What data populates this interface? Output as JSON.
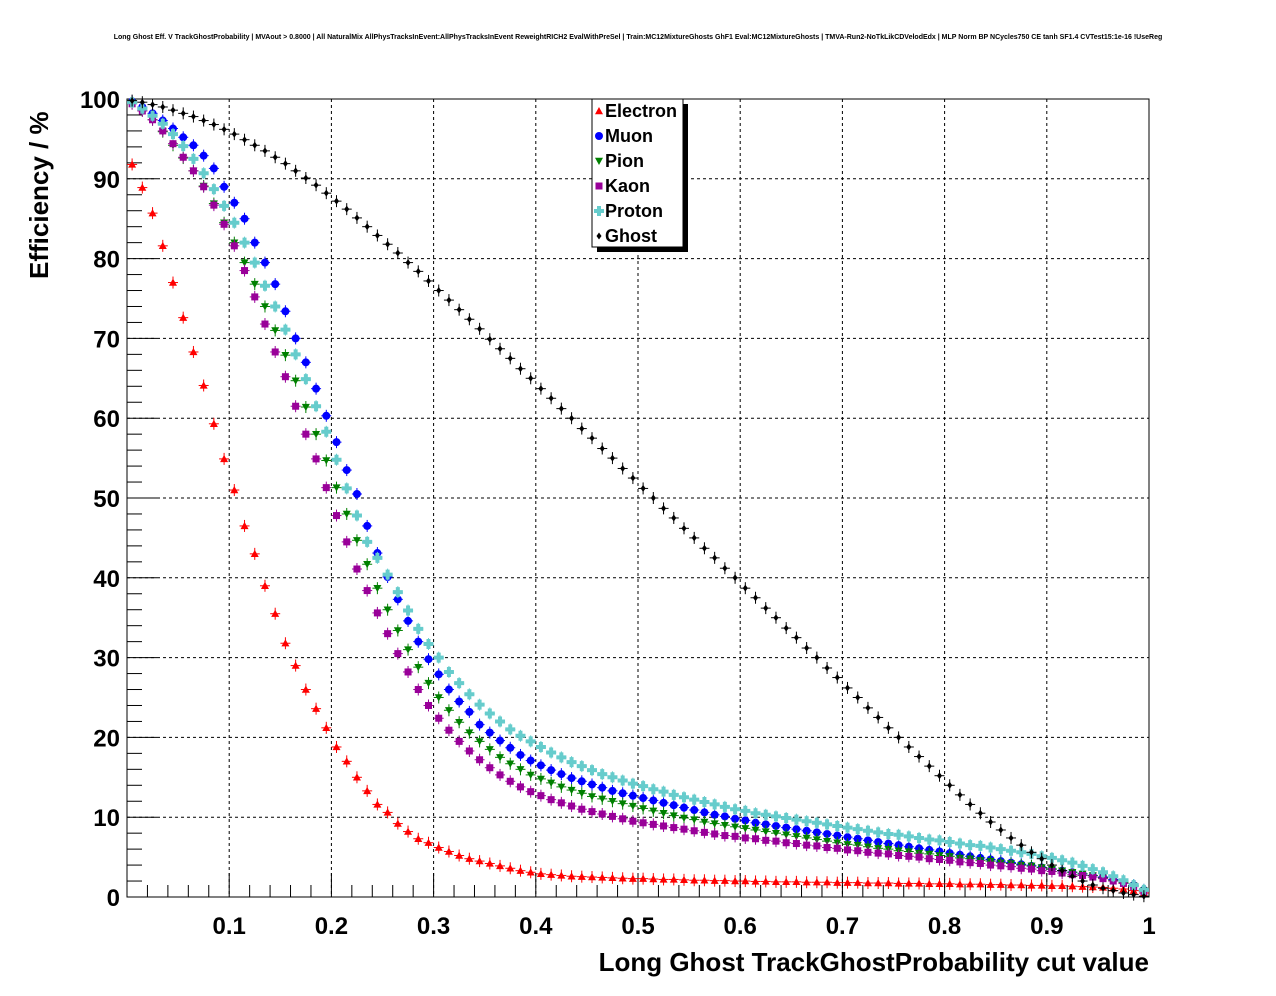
{
  "page": {
    "title": "Long Ghost Eff. V TrackGhostProbability | MVAout > 0.8000 | All NaturalMix AllPhysTracksInEvent:AllPhysTracksInEvent ReweightRICH2 EvalWithPreSel | Train:MC12MixtureGhosts GhF1 Eval:MC12MixtureGhosts | TMVA-Run2-NoTkLikCDVelodEdx | MLP Norm BP NCycles750 CE tanh SF1.4 CVTest15:1e-16 !UseReg"
  },
  "chart_data": {
    "type": "scatter",
    "title": "Long Ghost Eff. V TrackGhostProbability | MVAout > 0.8000 | All NaturalMix AllPhysTracksInEvent:AllPhysTracksInEvent ReweightRICH2 EvalWithPreSel | Train:MC12MixtureGhosts GhF1 Eval:MC12MixtureGhosts | TMVA-Run2-NoTkLikCDVelodEdx | MLP Norm BP NCycles750 CE tanh SF1.4 CVTest15:1e-16 !UseReg",
    "xlabel": "Long Ghost TrackGhostProbability cut value",
    "ylabel": "Efficiency / %",
    "xlim": [
      0,
      1
    ],
    "ylim": [
      0,
      100
    ],
    "xticks": [
      0.1,
      0.2,
      0.3,
      0.4,
      0.5,
      0.6,
      0.7,
      0.8,
      0.9,
      1
    ],
    "xtick_labels": [
      "0.1",
      "0.2",
      "0.3",
      "0.4",
      "0.5",
      "0.6",
      "0.7",
      "0.8",
      "0.9",
      "1"
    ],
    "yticks": [
      0,
      10,
      20,
      30,
      40,
      50,
      60,
      70,
      80,
      90,
      100
    ],
    "ytick_labels": [
      "0",
      "10",
      "20",
      "30",
      "40",
      "50",
      "60",
      "70",
      "80",
      "90",
      "100"
    ],
    "grid": true,
    "legend_position": "top-center",
    "x": [
      0.005,
      0.015,
      0.025,
      0.035,
      0.045,
      0.055,
      0.065,
      0.075,
      0.085,
      0.095,
      0.105,
      0.115,
      0.125,
      0.135,
      0.145,
      0.155,
      0.165,
      0.175,
      0.185,
      0.195,
      0.205,
      0.215,
      0.225,
      0.235,
      0.245,
      0.255,
      0.265,
      0.275,
      0.285,
      0.295,
      0.305,
      0.315,
      0.325,
      0.335,
      0.345,
      0.355,
      0.365,
      0.375,
      0.385,
      0.395,
      0.405,
      0.415,
      0.425,
      0.435,
      0.445,
      0.455,
      0.465,
      0.475,
      0.485,
      0.495,
      0.505,
      0.515,
      0.525,
      0.535,
      0.545,
      0.555,
      0.565,
      0.575,
      0.585,
      0.595,
      0.605,
      0.615,
      0.625,
      0.635,
      0.645,
      0.655,
      0.665,
      0.675,
      0.685,
      0.695,
      0.705,
      0.715,
      0.725,
      0.735,
      0.745,
      0.755,
      0.765,
      0.775,
      0.785,
      0.795,
      0.805,
      0.815,
      0.825,
      0.835,
      0.845,
      0.855,
      0.865,
      0.875,
      0.885,
      0.895,
      0.905,
      0.915,
      0.925,
      0.935,
      0.945,
      0.955,
      0.965,
      0.975,
      0.985,
      0.995
    ],
    "series": [
      {
        "name": "Electron",
        "color": "#ff0000",
        "marker": "triangle-up",
        "values": [
          91.8,
          88.9,
          85.7,
          81.6,
          77.0,
          72.6,
          68.3,
          64.1,
          59.3,
          54.9,
          51.0,
          46.5,
          43.0,
          39.0,
          35.5,
          31.8,
          29.0,
          26.0,
          23.6,
          21.2,
          18.8,
          17.0,
          15.0,
          13.3,
          11.6,
          10.6,
          9.2,
          8.2,
          7.3,
          6.8,
          6.2,
          5.7,
          5.2,
          4.8,
          4.5,
          4.2,
          3.9,
          3.6,
          3.3,
          3.1,
          2.9,
          2.8,
          2.7,
          2.6,
          2.55,
          2.5,
          2.45,
          2.4,
          2.35,
          2.3,
          2.3,
          2.25,
          2.2,
          2.2,
          2.15,
          2.1,
          2.1,
          2.05,
          2.05,
          2.0,
          2.0,
          1.95,
          1.95,
          1.9,
          1.9,
          1.9,
          1.85,
          1.85,
          1.85,
          1.8,
          1.8,
          1.8,
          1.75,
          1.75,
          1.75,
          1.7,
          1.7,
          1.7,
          1.65,
          1.65,
          1.65,
          1.6,
          1.6,
          1.6,
          1.55,
          1.55,
          1.5,
          1.5,
          1.45,
          1.45,
          1.4,
          1.4,
          1.35,
          1.3,
          1.25,
          1.2,
          1.1,
          1.0,
          0.8,
          0.5
        ]
      },
      {
        "name": "Muon",
        "color": "#0000ff",
        "marker": "circle",
        "values": [
          99.7,
          99.0,
          98.2,
          97.3,
          96.3,
          95.2,
          94.2,
          92.9,
          91.3,
          89.0,
          87.0,
          85.0,
          82.0,
          79.5,
          76.8,
          73.4,
          70.0,
          67.0,
          63.7,
          60.3,
          57.0,
          53.5,
          50.5,
          46.5,
          43.1,
          40.1,
          37.3,
          34.6,
          32.0,
          29.8,
          27.9,
          26.0,
          24.5,
          23.2,
          21.6,
          20.6,
          19.6,
          18.7,
          17.8,
          17.1,
          16.5,
          15.9,
          15.4,
          14.9,
          14.5,
          14.1,
          13.7,
          13.3,
          13.0,
          12.7,
          12.4,
          12.1,
          11.8,
          11.5,
          11.2,
          10.9,
          10.6,
          10.3,
          10.1,
          9.8,
          9.6,
          9.3,
          9.1,
          8.9,
          8.7,
          8.5,
          8.3,
          8.1,
          7.9,
          7.7,
          7.5,
          7.3,
          7.1,
          6.9,
          6.7,
          6.5,
          6.3,
          6.1,
          5.9,
          5.7,
          5.5,
          5.3,
          5.1,
          4.9,
          4.7,
          4.5,
          4.3,
          4.1,
          3.9,
          3.7,
          3.5,
          3.3,
          3.1,
          2.9,
          2.7,
          2.5,
          2.2,
          1.9,
          1.5,
          0.9
        ]
      },
      {
        "name": "Pion",
        "color": "#008000",
        "marker": "triangle-down",
        "values": [
          99.5,
          98.6,
          97.4,
          95.9,
          94.2,
          92.6,
          91.0,
          89.1,
          86.9,
          84.5,
          82.0,
          79.5,
          76.8,
          74.0,
          71.0,
          67.9,
          64.7,
          61.4,
          58.0,
          54.7,
          51.3,
          48.0,
          44.7,
          41.7,
          38.7,
          36.0,
          33.4,
          31.0,
          28.8,
          26.8,
          25.0,
          23.4,
          21.9,
          20.6,
          19.5,
          18.5,
          17.5,
          16.7,
          16.0,
          15.3,
          14.8,
          14.3,
          13.8,
          13.4,
          13.0,
          12.6,
          12.3,
          12.0,
          11.7,
          11.4,
          11.1,
          10.8,
          10.5,
          10.2,
          9.9,
          9.7,
          9.4,
          9.2,
          9.0,
          8.8,
          8.6,
          8.4,
          8.2,
          8.0,
          7.8,
          7.6,
          7.4,
          7.2,
          7.0,
          6.8,
          6.6,
          6.5,
          6.3,
          6.1,
          6.0,
          5.8,
          5.7,
          5.5,
          5.4,
          5.2,
          5.1,
          4.9,
          4.8,
          4.6,
          4.5,
          4.3,
          4.2,
          4.0,
          3.9,
          3.7,
          3.5,
          3.3,
          3.1,
          2.9,
          2.7,
          2.4,
          2.1,
          1.8,
          1.4,
          0.8
        ]
      },
      {
        "name": "Kaon",
        "color": "#990099",
        "marker": "square",
        "values": [
          99.4,
          98.5,
          97.4,
          96.0,
          94.4,
          92.7,
          91.0,
          89.0,
          86.7,
          84.3,
          81.6,
          78.5,
          75.2,
          71.8,
          68.3,
          65.2,
          61.5,
          58.0,
          54.9,
          51.3,
          47.8,
          44.5,
          41.1,
          38.4,
          35.6,
          33.0,
          30.5,
          28.2,
          26.0,
          24.0,
          22.4,
          20.9,
          19.5,
          18.3,
          17.2,
          16.2,
          15.3,
          14.5,
          13.8,
          13.2,
          12.7,
          12.2,
          11.8,
          11.4,
          11.0,
          10.7,
          10.4,
          10.1,
          9.8,
          9.5,
          9.3,
          9.1,
          8.9,
          8.7,
          8.5,
          8.3,
          8.1,
          7.9,
          7.7,
          7.6,
          7.4,
          7.3,
          7.1,
          7.0,
          6.8,
          6.7,
          6.5,
          6.4,
          6.2,
          6.1,
          5.9,
          5.8,
          5.6,
          5.5,
          5.4,
          5.2,
          5.1,
          5.0,
          4.8,
          4.7,
          4.6,
          4.4,
          4.3,
          4.2,
          4.0,
          3.9,
          3.8,
          3.6,
          3.5,
          3.3,
          3.2,
          3.0,
          2.8,
          2.7,
          2.5,
          2.3,
          2.0,
          1.7,
          1.3,
          0.7
        ]
      },
      {
        "name": "Proton",
        "color": "#66cccc",
        "marker": "cross",
        "values": [
          99.6,
          98.8,
          97.9,
          96.9,
          95.6,
          94.1,
          92.5,
          90.7,
          88.7,
          86.6,
          84.5,
          82.0,
          79.5,
          76.6,
          74.0,
          71.1,
          68.0,
          64.9,
          61.5,
          58.3,
          54.8,
          51.2,
          47.8,
          44.5,
          42.5,
          40.4,
          38.2,
          35.9,
          33.6,
          31.7,
          30.0,
          28.2,
          26.8,
          25.4,
          24.1,
          23.0,
          22.0,
          21.0,
          20.2,
          19.5,
          18.8,
          18.1,
          17.5,
          16.9,
          16.4,
          15.9,
          15.4,
          15.0,
          14.6,
          14.2,
          13.9,
          13.5,
          13.2,
          12.8,
          12.5,
          12.2,
          11.9,
          11.6,
          11.3,
          11.0,
          10.8,
          10.5,
          10.3,
          10.1,
          9.9,
          9.7,
          9.5,
          9.3,
          9.1,
          8.9,
          8.7,
          8.5,
          8.3,
          8.1,
          7.9,
          7.8,
          7.6,
          7.4,
          7.2,
          7.1,
          6.9,
          6.7,
          6.5,
          6.4,
          6.2,
          6.0,
          5.8,
          5.6,
          5.4,
          5.1,
          4.9,
          4.6,
          4.3,
          3.9,
          3.5,
          3.1,
          2.6,
          2.1,
          1.5,
          0.9
        ]
      },
      {
        "name": "Ghost",
        "color": "#000000",
        "marker": "diamond",
        "values": [
          99.8,
          99.6,
          99.3,
          99.0,
          98.6,
          98.2,
          97.8,
          97.3,
          96.8,
          96.2,
          95.6,
          94.9,
          94.2,
          93.5,
          92.7,
          91.9,
          91.0,
          90.1,
          89.2,
          88.2,
          87.2,
          86.2,
          85.1,
          84.0,
          82.9,
          81.8,
          80.7,
          79.5,
          78.4,
          77.2,
          76.0,
          74.8,
          73.6,
          72.4,
          71.2,
          69.9,
          68.7,
          67.5,
          66.2,
          65.0,
          63.7,
          62.5,
          61.2,
          60.0,
          58.7,
          57.5,
          56.2,
          55.0,
          53.7,
          52.5,
          51.2,
          50.0,
          48.7,
          47.5,
          46.2,
          45.0,
          43.7,
          42.5,
          41.2,
          40.0,
          38.7,
          37.5,
          36.2,
          35.0,
          33.7,
          32.5,
          31.2,
          30.0,
          28.7,
          27.5,
          26.2,
          25.0,
          23.7,
          22.5,
          21.2,
          20.0,
          18.8,
          17.6,
          16.4,
          15.2,
          14.0,
          12.8,
          11.6,
          10.5,
          9.4,
          8.4,
          7.4,
          6.5,
          5.6,
          4.8,
          4.0,
          3.3,
          2.6,
          2.0,
          1.5,
          1.1,
          0.8,
          0.5,
          0.3,
          0.1
        ]
      }
    ]
  }
}
